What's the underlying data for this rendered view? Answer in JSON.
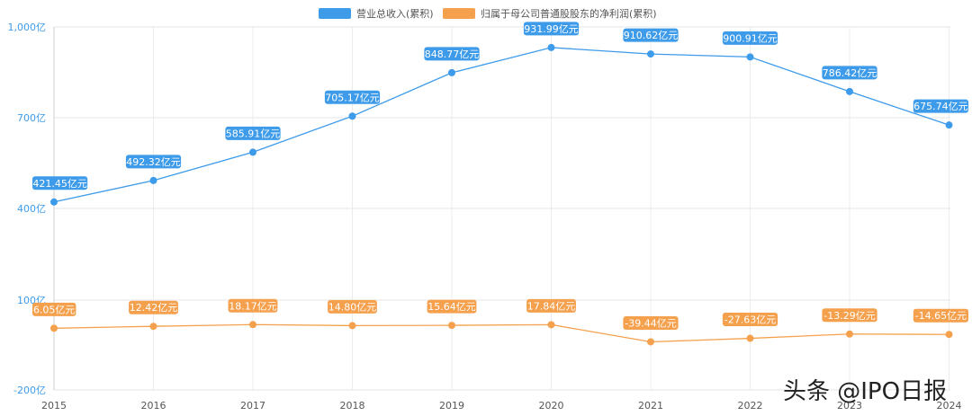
{
  "chart_data": {
    "type": "line",
    "x": [
      "2015",
      "2016",
      "2017",
      "2018",
      "2019",
      "2020",
      "2021",
      "2022",
      "2023",
      "2024"
    ],
    "series": [
      {
        "name": "营业总收入(累积)",
        "color": "#3e9bea",
        "values": [
          421.45,
          492.32,
          585.91,
          705.17,
          848.77,
          931.99,
          910.62,
          900.91,
          786.42,
          675.74
        ],
        "labels": [
          "421.45亿元",
          "492.32亿元",
          "585.91亿元",
          "705.17亿元",
          "848.77亿元",
          "931.99亿元",
          "910.62亿元",
          "900.91亿元",
          "786.42亿元",
          "675.74亿元"
        ]
      },
      {
        "name": "归属于母公司普通股股东的净利润(累积)",
        "color": "#f5a04d",
        "values": [
          6.05,
          12.42,
          18.17,
          14.8,
          15.64,
          17.84,
          -39.44,
          -27.63,
          -13.29,
          -14.65
        ],
        "labels": [
          "6.05亿元",
          "12.42亿元",
          "18.17亿元",
          "14.80亿元",
          "15.64亿元",
          "17.84亿元",
          "-39.44亿元",
          "-27.63亿元",
          "-13.29亿元",
          "-14.65亿元"
        ]
      }
    ],
    "axis_breaks": [
      {
        "from": -200,
        "to": 100
      },
      {
        "from": 400,
        "to": 1000
      }
    ],
    "y_ticks": [
      {
        "value": -200,
        "label": "-200亿"
      },
      {
        "value": 100,
        "label": "100亿"
      },
      {
        "value": 400,
        "label": "400亿"
      },
      {
        "value": 700,
        "label": "700亿"
      },
      {
        "value": 1000,
        "label": "1,000亿"
      }
    ],
    "grid": true,
    "legend_position": "top-center",
    "tick_color": "#3e9bea"
  },
  "watermark": "头条 @IPO日报"
}
